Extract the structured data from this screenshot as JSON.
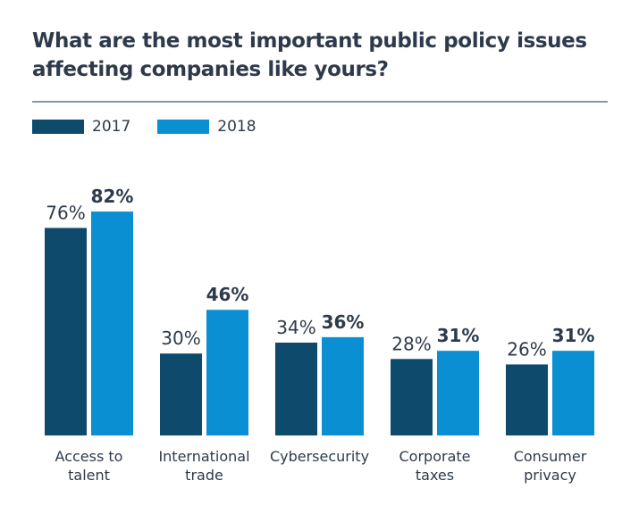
{
  "title": {
    "line1": "What are the most important public policy issues",
    "line2": "affecting companies like yours?"
  },
  "colors": {
    "2017": "#0d4a6b",
    "2018": "#0a8fd3",
    "text": "#2e3a4b",
    "rule": "#8a96a3"
  },
  "legend": [
    {
      "label": "2017",
      "color": "#0d4a6b"
    },
    {
      "label": "2018",
      "color": "#0a8fd3"
    }
  ],
  "chart_data": {
    "type": "bar",
    "categories": [
      [
        "Access to",
        "talent"
      ],
      [
        "International",
        "trade"
      ],
      [
        "Cybersecurity"
      ],
      [
        "Corporate",
        "taxes"
      ],
      [
        "Consumer",
        "privacy"
      ]
    ],
    "series": [
      {
        "name": "2017",
        "values": [
          76,
          30,
          34,
          28,
          26
        ],
        "labels": [
          "76%",
          "30%",
          "34%",
          "28%",
          "26%"
        ],
        "color": "#0d4a6b"
      },
      {
        "name": "2018",
        "values": [
          82,
          46,
          36,
          31,
          31
        ],
        "labels": [
          "82%",
          "46%",
          "36%",
          "31%",
          "31%"
        ],
        "color": "#0a8fd3"
      }
    ],
    "ylim": [
      0,
      100
    ],
    "grid": false,
    "legend_position": "top-left"
  }
}
